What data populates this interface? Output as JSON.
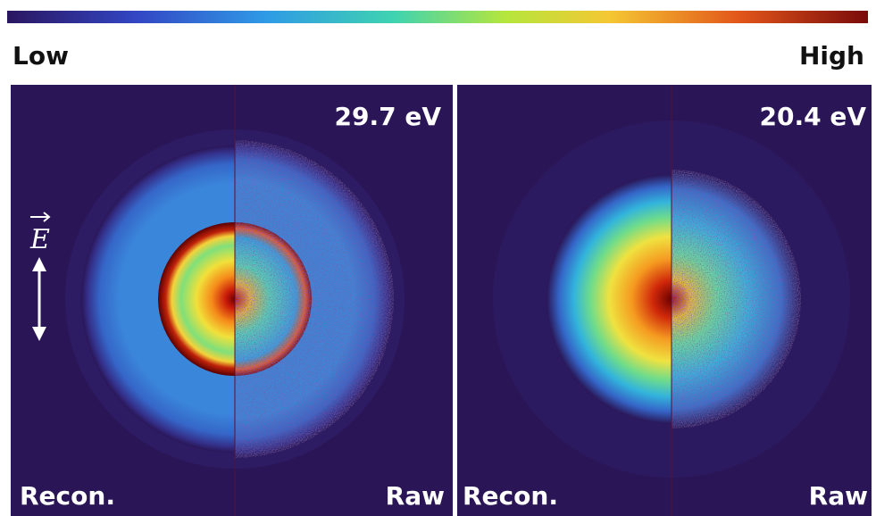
{
  "colorbar": {
    "low": "Low",
    "high": "High"
  },
  "panels": [
    {
      "energy": "29.7 eV",
      "left_label": "Recon.",
      "right_label": "Raw",
      "field_label": "E"
    },
    {
      "energy": "20.4 eV",
      "left_label": "Recon.",
      "right_label": "Raw"
    }
  ]
}
